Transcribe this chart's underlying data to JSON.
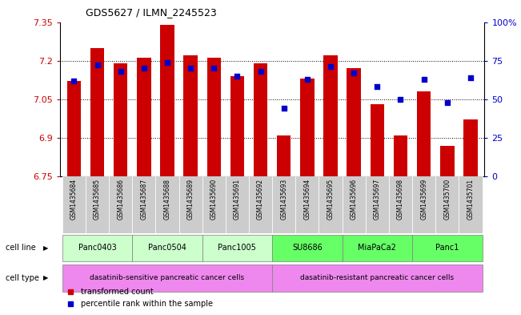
{
  "title": "GDS5627 / ILMN_2245523",
  "samples": [
    "GSM1435684",
    "GSM1435685",
    "GSM1435686",
    "GSM1435687",
    "GSM1435688",
    "GSM1435689",
    "GSM1435690",
    "GSM1435691",
    "GSM1435692",
    "GSM1435693",
    "GSM1435694",
    "GSM1435695",
    "GSM1435696",
    "GSM1435697",
    "GSM1435698",
    "GSM1435699",
    "GSM1435700",
    "GSM1435701"
  ],
  "bar_values": [
    7.12,
    7.25,
    7.19,
    7.21,
    7.34,
    7.22,
    7.21,
    7.14,
    7.19,
    6.91,
    7.13,
    7.22,
    7.17,
    7.03,
    6.91,
    7.08,
    6.87,
    6.97
  ],
  "percentile_values": [
    62,
    72,
    68,
    70,
    74,
    70,
    70,
    65,
    68,
    44,
    63,
    71,
    67,
    58,
    50,
    63,
    48,
    64
  ],
  "bar_bottom": 6.75,
  "ylim_left": [
    6.75,
    7.35
  ],
  "ylim_right": [
    0,
    100
  ],
  "yticks_left": [
    6.75,
    6.9,
    7.05,
    7.2,
    7.35
  ],
  "ytick_labels_left": [
    "6.75",
    "6.9",
    "7.05",
    "7.2",
    "7.35"
  ],
  "yticks_right": [
    0,
    25,
    50,
    75,
    100
  ],
  "ytick_labels_right": [
    "0",
    "25",
    "50",
    "75",
    "100%"
  ],
  "hlines": [
    6.9,
    7.05,
    7.2
  ],
  "bar_color": "#cc0000",
  "percentile_color": "#0000cc",
  "cell_lines": [
    {
      "label": "Panc0403",
      "start": 0,
      "end": 2,
      "color": "#ccffcc"
    },
    {
      "label": "Panc0504",
      "start": 3,
      "end": 5,
      "color": "#ccffcc"
    },
    {
      "label": "Panc1005",
      "start": 6,
      "end": 8,
      "color": "#ccffcc"
    },
    {
      "label": "SU8686",
      "start": 9,
      "end": 11,
      "color": "#66ff66"
    },
    {
      "label": "MiaPaCa2",
      "start": 12,
      "end": 14,
      "color": "#66ff66"
    },
    {
      "label": "Panc1",
      "start": 15,
      "end": 17,
      "color": "#66ff66"
    }
  ],
  "cell_types": [
    {
      "label": "dasatinib-sensitive pancreatic cancer cells",
      "start": 0,
      "end": 8,
      "color": "#ee88ee"
    },
    {
      "label": "dasatinib-resistant pancreatic cancer cells",
      "start": 9,
      "end": 17,
      "color": "#ee88ee"
    }
  ],
  "sample_bg_color": "#cccccc",
  "legend_bar_label": "transformed count",
  "legend_dot_label": "percentile rank within the sample",
  "left_tick_color": "#cc0000",
  "right_tick_color": "#0000cc",
  "cell_line_label": "cell line",
  "cell_type_label": "cell type",
  "bar_width": 0.6
}
